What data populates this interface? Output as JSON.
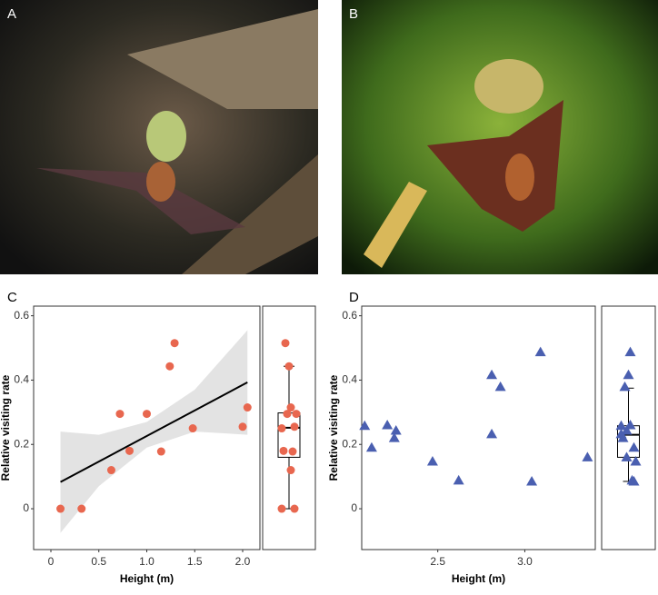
{
  "photo_labels": [
    "A",
    "B"
  ],
  "chart_data": [
    {
      "type": "scatter",
      "panel_label": "C",
      "x_label": "Height (m)",
      "y_label": "Relative visiting rate",
      "marker": "circle",
      "color": "#e8674f",
      "x": [
        0.1,
        0.32,
        0.63,
        0.72,
        0.82,
        1.0,
        1.15,
        1.24,
        1.29,
        1.48,
        2.0,
        2.05
      ],
      "values": [
        0,
        0,
        0.12,
        0.295,
        0.18,
        0.295,
        0.178,
        0.443,
        0.515,
        0.25,
        0.255,
        0.315
      ],
      "fit": {
        "x": [
          0.1,
          2.05
        ],
        "y": [
          0.083,
          0.393
        ]
      },
      "band": {
        "x": [
          0.1,
          0.5,
          1.0,
          1.5,
          2.05
        ],
        "lower": [
          -0.075,
          0.07,
          0.19,
          0.24,
          0.23
        ],
        "upper": [
          0.24,
          0.23,
          0.27,
          0.37,
          0.555
        ]
      },
      "boxplot": {
        "min": 0,
        "q1": 0.16,
        "median": 0.252,
        "q3": 0.298,
        "max": 0.443
      },
      "xlim": [
        -0.18,
        2.18
      ],
      "ylim": [
        -0.127,
        0.63
      ],
      "xticks": [
        0,
        0.5,
        {
          "value": 1,
          "label": "1.0"
        },
        1.5,
        {
          "value": 2,
          "label": "2.0"
        }
      ],
      "yticks": [
        0,
        0.2,
        0.4,
        0.6
      ]
    },
    {
      "type": "scatter",
      "panel_label": "D",
      "x_label": "Height (m)",
      "y_label": "Relative visiting rate",
      "marker": "triangle",
      "color": "#4a5fb0",
      "x": [
        2.08,
        2.12,
        2.21,
        2.26,
        2.25,
        2.47,
        2.62,
        2.81,
        2.86,
        2.81,
        3.04,
        3.09,
        3.36
      ],
      "values": [
        0.258,
        0.19,
        0.26,
        0.243,
        0.22,
        0.147,
        0.088,
        0.416,
        0.379,
        0.232,
        0.085,
        0.487,
        0.16
      ],
      "boxplot": {
        "min": 0.085,
        "q1": 0.16,
        "median": 0.23,
        "q3": 0.258,
        "max": 0.375
      },
      "xlim": [
        2.063,
        3.405
      ],
      "ylim": [
        -0.127,
        0.63
      ],
      "xticks": [
        2.5,
        {
          "value": 3,
          "label": "3.0"
        }
      ],
      "yticks": [
        0,
        0.2,
        0.4,
        0.6
      ]
    }
  ]
}
